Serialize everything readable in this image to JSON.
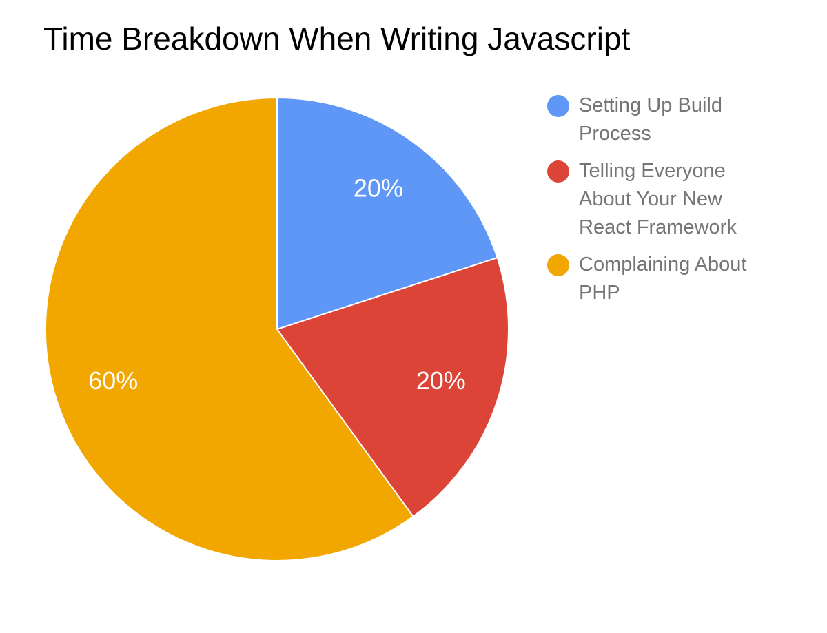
{
  "chart_data": {
    "type": "pie",
    "title": "Time Breakdown When Writing Javascript",
    "categories": [
      "Setting Up Build Process",
      "Telling Everyone About Your New React Framework",
      "Complaining About PHP"
    ],
    "values": [
      20,
      20,
      60
    ],
    "value_labels": [
      "20%",
      "20%",
      "60%"
    ],
    "colors": [
      "#5e97f6",
      "#db4437",
      "#f2a600"
    ]
  }
}
